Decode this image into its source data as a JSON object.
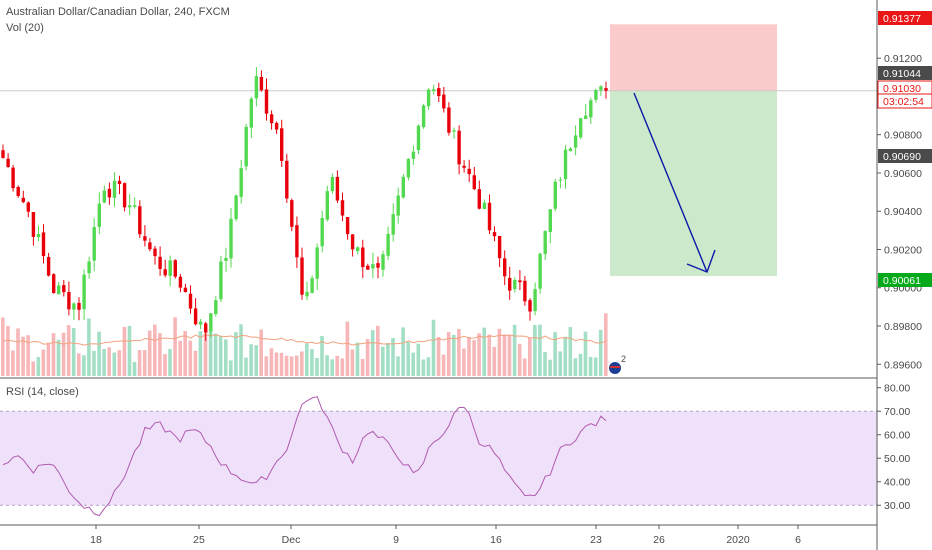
{
  "header": {
    "symbol_title": "Australian Dollar/Canadian Dollar, 240, FXCM",
    "volume_title": "Vol (20)",
    "rsi_title": "RSI (14, close)"
  },
  "colors": {
    "up": "#53d94f",
    "down": "#e8000b",
    "vol_up": "#a3dfc4",
    "vol_down": "#f7b6b8",
    "stop_zone": "#fbcaca",
    "target_zone": "#cde9cb",
    "arrow": "#0b18a8",
    "rsi_line": "#b05ab0",
    "rsi_band": "#f0e1fa",
    "stop_badge": "#e91717",
    "target_badge": "#06a91a",
    "price_badge": "#4a4a4a"
  },
  "price_axis": {
    "ticks": [
      "0.91200",
      "0.91000",
      "0.90800",
      "0.90600",
      "0.90400",
      "0.90200",
      "0.90000",
      "0.89800",
      "0.89600"
    ],
    "badges": [
      {
        "label": "0.91377",
        "type": "stop"
      },
      {
        "label": "0.91044",
        "type": "price"
      },
      {
        "label": "0.91030",
        "type": "current"
      },
      {
        "label": "03:02:54",
        "type": "countdown"
      },
      {
        "label": "0.90690",
        "type": "price"
      },
      {
        "label": "0.90061",
        "type": "target"
      }
    ]
  },
  "rsi_axis": {
    "ticks": [
      "80.00",
      "70.00",
      "60.00",
      "50.00",
      "40.00",
      "30.00"
    ]
  },
  "time_axis": {
    "labels": [
      "18",
      "25",
      "Dec",
      "9",
      "16",
      "23",
      "26",
      "2020",
      "6"
    ]
  },
  "badge_marker": {
    "label": "2"
  },
  "chart_data": {
    "type": "candlestick",
    "title": "Australian Dollar/Canadian Dollar, 240, FXCM",
    "xlabel": "",
    "ylabel": "",
    "ylim": [
      0.8957,
      0.9141
    ],
    "grid": false,
    "series": [
      {
        "name": "Australian Dollar/Canadian Dollar",
        "key_closes": [
          0.9068,
          0.904,
          0.9,
          0.899,
          0.9055,
          0.9045,
          0.9015,
          0.9005,
          0.8975,
          0.9025,
          0.911,
          0.908,
          0.8985,
          0.9058,
          0.902,
          0.9005,
          0.906,
          0.911,
          0.9075,
          0.9045,
          0.9005,
          0.8993,
          0.9052,
          0.9094,
          0.9103
        ]
      },
      {
        "name": "Vol (20)"
      },
      {
        "name": "RSI (14, close)",
        "values": [
          48,
          51,
          45,
          49,
          38,
          30,
          27,
          34,
          48,
          62,
          64,
          58,
          62,
          56,
          46,
          42,
          38,
          46,
          56,
          76,
          74,
          58,
          49,
          62,
          57,
          51,
          41,
          56,
          63,
          74,
          58,
          52,
          40,
          32,
          38,
          52,
          59,
          64,
          67
        ]
      }
    ],
    "trade": {
      "entry": 0.9103,
      "stop": 0.91377,
      "target": 0.90061
    },
    "rsi_ylim": [
      25,
      82
    ],
    "rsi_band": [
      30,
      70
    ]
  }
}
